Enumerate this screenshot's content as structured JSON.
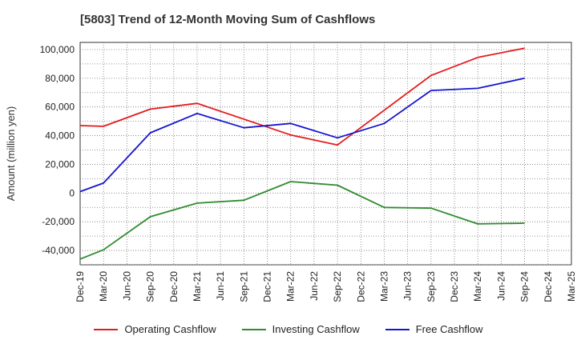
{
  "title": "[5803]  Trend of 12-Month Moving Sum of Cashflows",
  "chart_data": {
    "type": "line",
    "title": "[5803]  Trend of 12-Month Moving Sum of Cashflows",
    "xlabel": "",
    "ylabel": "Amount (million yen)",
    "categories": [
      "Dec-19",
      "Mar-20",
      "Jun-20",
      "Sep-20",
      "Dec-20",
      "Mar-21",
      "Jun-21",
      "Sep-21",
      "Dec-21",
      "Mar-22",
      "Jun-22",
      "Sep-22",
      "Dec-22",
      "Mar-23",
      "Jun-23",
      "Sep-23",
      "Dec-23",
      "Mar-24",
      "Jun-24",
      "Sep-24",
      "Dec-24",
      "Mar-25"
    ],
    "ylim": [
      -50000,
      105000
    ],
    "yticks": [
      -40000,
      -20000,
      0,
      20000,
      40000,
      60000,
      80000,
      100000
    ],
    "ytick_labels": [
      "-40,000",
      "-20,000",
      "0",
      "20,000",
      "40,000",
      "60,000",
      "80,000",
      "100,000"
    ],
    "grid": true,
    "legend_position": "bottom",
    "series": [
      {
        "name": "Operating Cashflow",
        "color": "#e41a1c",
        "values": [
          47000,
          46500,
          null,
          58500,
          null,
          62500,
          null,
          null,
          null,
          40500,
          null,
          33500,
          null,
          null,
          null,
          82000,
          null,
          94500,
          null,
          101000,
          null,
          null
        ]
      },
      {
        "name": "Investing Cashflow",
        "color": "#2e8b2e",
        "values": [
          -46000,
          -39500,
          null,
          -16500,
          null,
          -7000,
          null,
          -5000,
          null,
          8000,
          null,
          5500,
          null,
          -10000,
          null,
          -10500,
          null,
          -21500,
          null,
          -21000,
          null,
          null
        ]
      },
      {
        "name": "Free Cashflow",
        "color": "#1515d0",
        "values": [
          1000,
          7000,
          null,
          42000,
          null,
          55500,
          null,
          45500,
          null,
          48500,
          null,
          38500,
          null,
          48500,
          null,
          71500,
          null,
          73000,
          null,
          80000,
          null,
          null
        ]
      }
    ]
  }
}
